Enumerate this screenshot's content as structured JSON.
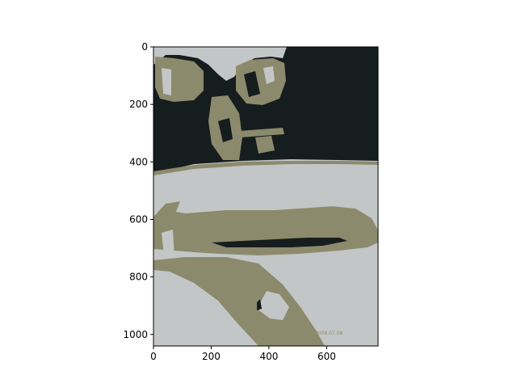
{
  "figure": {
    "palette": {
      "dark": "#161d1e",
      "olive": "#8c8a6c",
      "light": "#c3c6c7"
    },
    "x_axis": {
      "range": [
        0,
        778
      ],
      "ticks": [
        {
          "value": 0,
          "label": "0"
        },
        {
          "value": 200,
          "label": "200"
        },
        {
          "value": 400,
          "label": "400"
        },
        {
          "value": 600,
          "label": "600"
        }
      ]
    },
    "y_axis": {
      "range": [
        0,
        1040
      ],
      "ticks": [
        {
          "value": 0,
          "label": "0"
        },
        {
          "value": 200,
          "label": "200"
        },
        {
          "value": 400,
          "label": "400"
        },
        {
          "value": 600,
          "label": "600"
        },
        {
          "value": 800,
          "label": "800"
        },
        {
          "value": 1000,
          "label": "1000"
        }
      ]
    }
  }
}
